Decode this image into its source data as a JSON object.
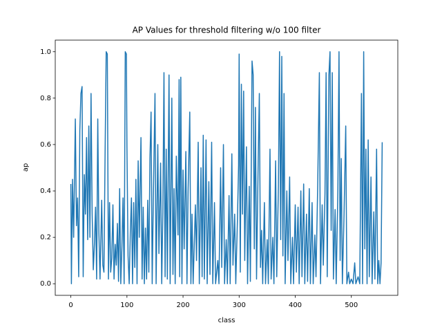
{
  "chart_data": {
    "type": "line",
    "title": "AP Values for threshold filtering w/o 100 filter",
    "x_label": "class",
    "y_label": "ap",
    "x": [
      0,
      1,
      3,
      5,
      8,
      10,
      12,
      14,
      16,
      18,
      20,
      22,
      24,
      26,
      28,
      30,
      32,
      34,
      36,
      38,
      40,
      42,
      44,
      46,
      48,
      50,
      52,
      55,
      57,
      59,
      61,
      63,
      65,
      67,
      69,
      71,
      73,
      75,
      77,
      79,
      81,
      83,
      85,
      87,
      89,
      91,
      93,
      95,
      97,
      99,
      100,
      102,
      104,
      106,
      108,
      110,
      112,
      114,
      116,
      118,
      120,
      122,
      125,
      127,
      129,
      131,
      133,
      135,
      137,
      139,
      141,
      143,
      145,
      147,
      150,
      152,
      155,
      157,
      160,
      162,
      164,
      166,
      168,
      170,
      172,
      175,
      177,
      180,
      182,
      184,
      186,
      188,
      191,
      193,
      194,
      196,
      198,
      200,
      202,
      205,
      207,
      209,
      212,
      214,
      216,
      218,
      222,
      224,
      227,
      229,
      232,
      234,
      236,
      238,
      241,
      243,
      246,
      248,
      251,
      253,
      256,
      258,
      262,
      264,
      267,
      269,
      272,
      274,
      277,
      279,
      282,
      284,
      287,
      289,
      292,
      294,
      297,
      299,
      300,
      302,
      304,
      306,
      308,
      310,
      313,
      315,
      318,
      320,
      323,
      325,
      327,
      329,
      331,
      334,
      336,
      338,
      340,
      342,
      345,
      347,
      350,
      352,
      355,
      357,
      360,
      362,
      365,
      367,
      370,
      372,
      374,
      376,
      378,
      380,
      382,
      385,
      387,
      390,
      392,
      395,
      397,
      400,
      402,
      405,
      407,
      410,
      412,
      415,
      417,
      420,
      422,
      425,
      427,
      430,
      432,
      435,
      437,
      440,
      443,
      445,
      448,
      450,
      453,
      455,
      457,
      460,
      462,
      464,
      466,
      468,
      471,
      473,
      476,
      478,
      480,
      482,
      484,
      487,
      490,
      492,
      495,
      497,
      500,
      503,
      506,
      508,
      512,
      515,
      518,
      520,
      522,
      524,
      526,
      528,
      530,
      532,
      535,
      537,
      540,
      542,
      545,
      547,
      549,
      551,
      553,
      555
    ],
    "series": [
      {
        "name": "ap",
        "color": "#1f77b4",
        "values": [
          0.43,
          0,
          0.45,
          0.2,
          0.71,
          0.25,
          0.37,
          0.03,
          0.66,
          0.82,
          0.85,
          0.03,
          0.47,
          0.3,
          0.63,
          0.19,
          0.68,
          0.2,
          0.82,
          0.3,
          0.06,
          0.17,
          0.33,
          0.02,
          0.71,
          0.22,
          0.02,
          0.36,
          0.08,
          0.05,
          0.55,
          1.0,
          0.99,
          0.02,
          0.35,
          0.05,
          0.11,
          0.34,
          0.02,
          0.17,
          0.08,
          0.26,
          0.01,
          0.41,
          0,
          0.16,
          0.37,
          0,
          1.0,
          0.99,
          0.59,
          0.12,
          0,
          0.22,
          0.37,
          0,
          0.35,
          0.07,
          0.45,
          0,
          0.53,
          0.2,
          0.63,
          0.02,
          0.33,
          0,
          0.24,
          0.02,
          0.36,
          0.05,
          0.54,
          0.74,
          0,
          0.36,
          0.82,
          0,
          0.6,
          0.13,
          0.52,
          0,
          0.31,
          0.91,
          0.03,
          0.58,
          0.02,
          0.9,
          0,
          0.8,
          0.04,
          0.41,
          0,
          0.55,
          0.21,
          0.88,
          0.03,
          0.89,
          0,
          0.49,
          0.15,
          0.57,
          0,
          0.4,
          0.74,
          0,
          0.3,
          0,
          0.34,
          0.1,
          0.61,
          0,
          0.5,
          0.03,
          0.64,
          0.02,
          0.62,
          0,
          0.44,
          0.04,
          0.61,
          0,
          0.35,
          0,
          0.1,
          0,
          0.5,
          0.07,
          0.6,
          0,
          0.19,
          0,
          0.38,
          0,
          0.56,
          0.08,
          0.3,
          0,
          0.28,
          0.51,
          0.99,
          0.05,
          0.86,
          0.3,
          0.83,
          0.1,
          0.59,
          0,
          0.42,
          0.01,
          0.96,
          0.9,
          0.15,
          0.76,
          0.02,
          0.54,
          0.82,
          0.07,
          0.23,
          0,
          0.35,
          0,
          0.19,
          0,
          0.58,
          0.02,
          0.2,
          0,
          0.53,
          0.03,
          0.42,
          1.0,
          0.19,
          0.98,
          0.12,
          0.82,
          0,
          0.4,
          0.1,
          0.46,
          0,
          0.2,
          0,
          0.34,
          0.05,
          0.33,
          0,
          0.4,
          0.03,
          0.43,
          0,
          0.3,
          0.01,
          0.41,
          0,
          0.35,
          0,
          0.21,
          0.03,
          0.42,
          0.91,
          0,
          0.34,
          0.08,
          0.39,
          0.91,
          0.03,
          0.9,
          1.0,
          0.23,
          0.91,
          0.02,
          0.32,
          0,
          0.41,
          1.0,
          0.1,
          0.54,
          0,
          0.3,
          0.68,
          0,
          0.05,
          0,
          0.02,
          0,
          0.09,
          0,
          0.03,
          0,
          0.82,
          0,
          1.0,
          0.15,
          0.58,
          0,
          0.62,
          0.03,
          0.46,
          0,
          0.31,
          0.02,
          0.58,
          0,
          0.1,
          0,
          0.09,
          0.61
        ]
      }
    ],
    "xlim": [
      -27.8,
      582.8
    ],
    "ylim": [
      -0.05,
      1.05
    ],
    "xticks": [
      0,
      100,
      200,
      300,
      400,
      500
    ],
    "yticks": [
      {
        "value": 0,
        "label": "0.0"
      },
      {
        "value": 0.2,
        "label": "0.2"
      },
      {
        "value": 0.4,
        "label": "0.4"
      },
      {
        "value": 0.6,
        "label": "0.6"
      },
      {
        "value": 0.8,
        "label": "0.8"
      },
      {
        "value": 1.0,
        "label": "1.0"
      }
    ]
  }
}
